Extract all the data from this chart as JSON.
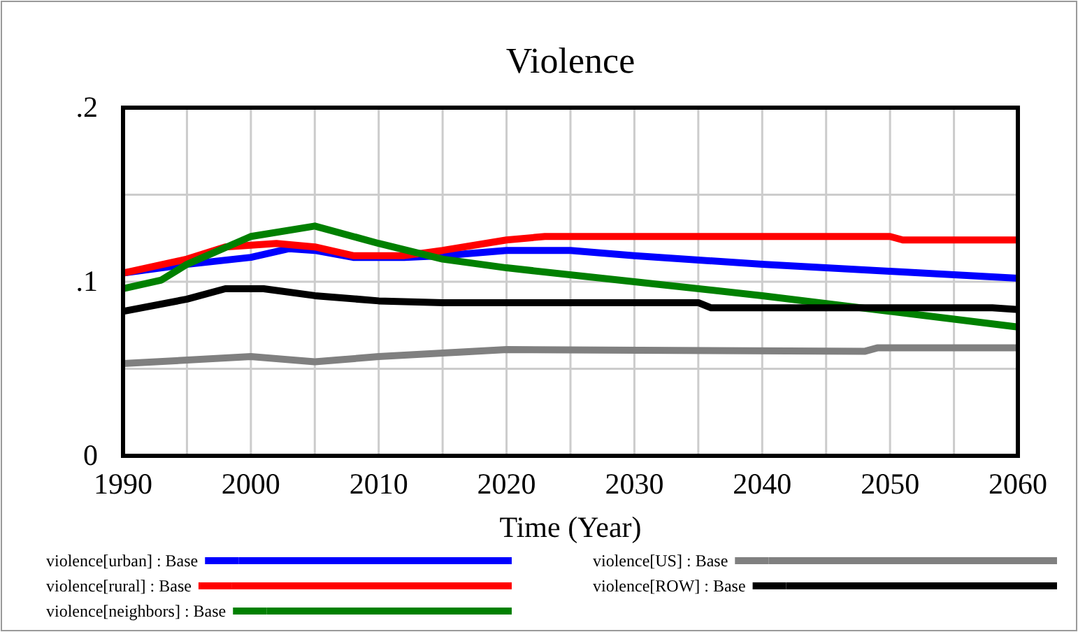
{
  "chart_data": {
    "type": "line",
    "title": "Violence",
    "xlabel": "Time (Year)",
    "xlim": [
      1990,
      2060
    ],
    "xticks": [
      1990,
      {
        "value": 1995,
        "label": null
      },
      2000,
      {
        "value": 2005,
        "label": null
      },
      2010,
      {
        "value": 2015,
        "label": null
      },
      2020,
      {
        "value": 2025,
        "label": null
      },
      2030,
      {
        "value": 2035,
        "label": null
      },
      2040,
      {
        "value": 2045,
        "label": null
      },
      2050,
      {
        "value": 2055,
        "label": null
      },
      2060
    ],
    "ylim": [
      0,
      0.2
    ],
    "yticks": [
      {
        "value": 0,
        "label": "0"
      },
      {
        "value": 0.05,
        "label": null
      },
      {
        "value": 0.1,
        "label": ".1"
      },
      {
        "value": 0.15,
        "label": null
      },
      {
        "value": 0.2,
        "label": ".2"
      }
    ],
    "grid": true,
    "legend": "bottom",
    "line_style": "solid",
    "marker": "none",
    "series": [
      {
        "name": "violence[urban] : Base",
        "color": "#0000ff",
        "x": [
          1990,
          1995,
          2000,
          2003,
          2005,
          2008,
          2012,
          2015,
          2020,
          2025,
          2030,
          2040,
          2050,
          2060
        ],
        "values": [
          0.105,
          0.11,
          0.114,
          0.119,
          0.118,
          0.114,
          0.114,
          0.115,
          0.118,
          0.118,
          0.115,
          0.11,
          0.106,
          0.102
        ]
      },
      {
        "name": "violence[rural] : Base",
        "color": "#ff0000",
        "x": [
          1990,
          1995,
          1998,
          2002,
          2005,
          2008,
          2012,
          2015,
          2020,
          2023,
          2050,
          2051,
          2060
        ],
        "values": [
          0.105,
          0.113,
          0.12,
          0.122,
          0.12,
          0.115,
          0.115,
          0.118,
          0.124,
          0.126,
          0.126,
          0.124,
          0.124
        ]
      },
      {
        "name": "violence[neighbors] : Base",
        "color": "#008000",
        "x": [
          1990,
          1993,
          1995,
          2000,
          2005,
          2010,
          2015,
          2020,
          2030,
          2040,
          2050,
          2060
        ],
        "values": [
          0.096,
          0.101,
          0.11,
          0.126,
          0.132,
          0.122,
          0.113,
          0.108,
          0.1,
          0.092,
          0.083,
          0.074
        ]
      },
      {
        "name": "violence[US] : Base",
        "color": "#808080",
        "x": [
          1990,
          2000,
          2005,
          2010,
          2015,
          2020,
          2048,
          2049,
          2060
        ],
        "values": [
          0.053,
          0.057,
          0.054,
          0.057,
          0.059,
          0.061,
          0.06,
          0.062,
          0.062
        ]
      },
      {
        "name": "violence[ROW] : Base",
        "color": "#000000",
        "x": [
          1990,
          1995,
          1998,
          2001,
          2005,
          2010,
          2015,
          2035,
          2036,
          2058,
          2060
        ],
        "values": [
          0.083,
          0.09,
          0.096,
          0.096,
          0.092,
          0.089,
          0.088,
          0.088,
          0.085,
          0.085,
          0.084
        ]
      }
    ]
  }
}
